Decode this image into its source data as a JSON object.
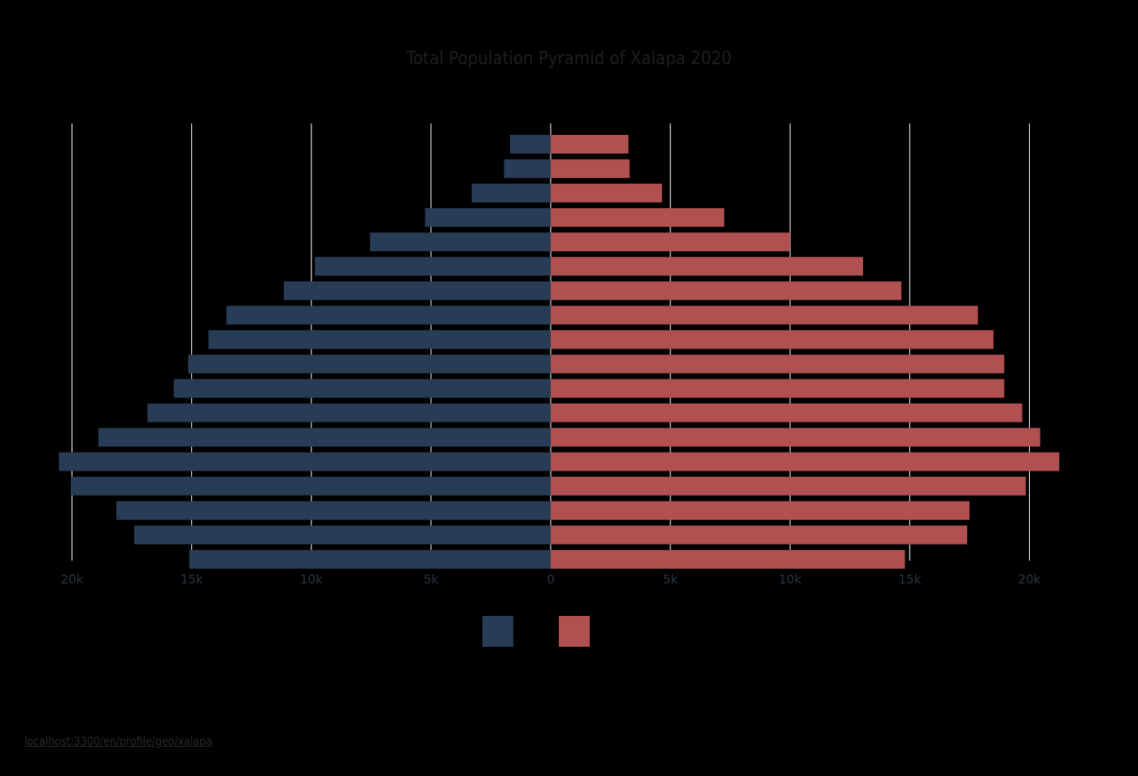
{
  "title": "Total Population Pyramid of Xalapa 2020",
  "source_link": "localhost:3300/en/profile/geo/xalapa",
  "colors": {
    "male": "#283c55",
    "female": "#b05050",
    "grid": "#ffffff",
    "tick_text": "#2a3545"
  },
  "chart_data": {
    "type": "bar",
    "orientation": "horizontal-diverging",
    "title": "Total Population Pyramid of Xalapa 2020",
    "xlabel": "",
    "ylabel": "",
    "xlim": [
      -20000,
      20000
    ],
    "x_ticks": [
      -20000,
      -15000,
      -10000,
      -5000,
      0,
      5000,
      10000,
      15000,
      20000
    ],
    "x_tick_labels": [
      "20k",
      "15k",
      "10k",
      "5k",
      "0",
      "5k",
      "10k",
      "15k",
      "20k"
    ],
    "grid": true,
    "legend": "bottom-center",
    "series": [
      {
        "color": "#283c55",
        "side": "left",
        "values": [
          1700,
          1950,
          3300,
          5250,
          7550,
          9850,
          11150,
          13550,
          14300,
          15150,
          15750,
          16850,
          18900,
          20550,
          20050,
          18150,
          17400,
          15100
        ]
      },
      {
        "color": "#b05050",
        "side": "right",
        "values": [
          3250,
          3300,
          4650,
          7250,
          10000,
          13050,
          14650,
          17850,
          18500,
          18950,
          18950,
          19700,
          20450,
          21250,
          19850,
          17500,
          17400,
          14800
        ]
      }
    ]
  }
}
